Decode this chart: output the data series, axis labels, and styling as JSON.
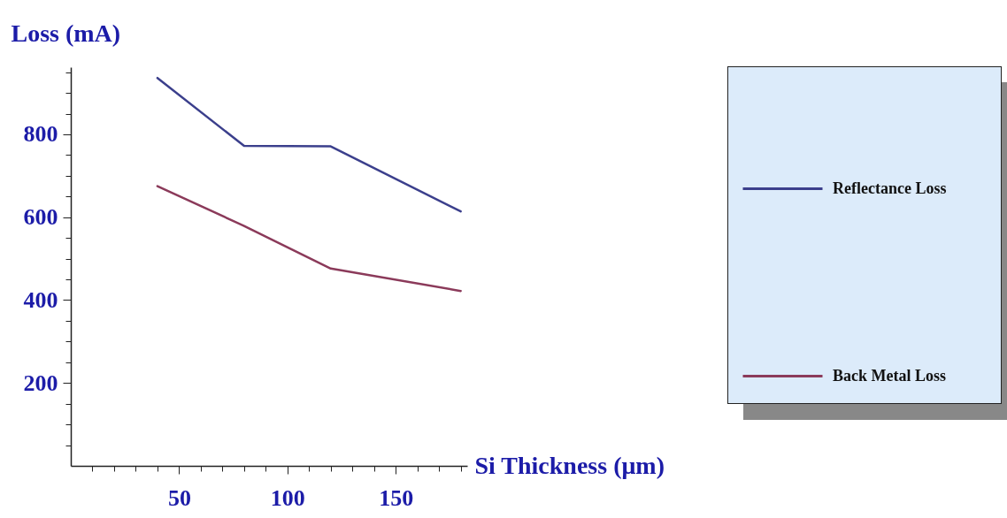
{
  "chart_data": {
    "type": "line",
    "xlabel": "Si Thickness (μm)",
    "ylabel": "Loss (mA)",
    "x": [
      40,
      80,
      120,
      180
    ],
    "series": [
      {
        "name": "Reflectance Loss",
        "color": "#3b3f8c",
        "values": [
          936,
          772,
          771,
          614
        ]
      },
      {
        "name": "Back Metal Loss",
        "color": "#8b3a5a",
        "values": [
          675,
          579,
          476,
          422
        ]
      }
    ],
    "xlim": [
      0,
      183
    ],
    "ylim": [
      0,
      962
    ],
    "xticks": [
      {
        "value": 10,
        "label": null
      },
      {
        "value": 20,
        "label": null
      },
      {
        "value": 30,
        "label": null
      },
      {
        "value": 40,
        "label": null
      },
      50,
      {
        "value": 60,
        "label": null
      },
      {
        "value": 70,
        "label": null
      },
      {
        "value": 80,
        "label": null
      },
      {
        "value": 90,
        "label": null
      },
      100,
      {
        "value": 110,
        "label": null
      },
      {
        "value": 120,
        "label": null
      },
      {
        "value": 130,
        "label": null
      },
      {
        "value": 140,
        "label": null
      },
      150,
      {
        "value": 160,
        "label": null
      },
      {
        "value": 170,
        "label": null
      },
      {
        "value": 180,
        "label": null
      }
    ],
    "yticks": [
      {
        "value": 50,
        "label": null
      },
      {
        "value": 100,
        "label": null
      },
      {
        "value": 150,
        "label": null
      },
      200,
      {
        "value": 250,
        "label": null
      },
      {
        "value": 300,
        "label": null
      },
      {
        "value": 350,
        "label": null
      },
      400,
      {
        "value": 450,
        "label": null
      },
      {
        "value": 500,
        "label": null
      },
      {
        "value": 550,
        "label": null
      },
      600,
      {
        "value": 650,
        "label": null
      },
      {
        "value": 700,
        "label": null
      },
      {
        "value": 750,
        "label": null
      },
      800,
      {
        "value": 850,
        "label": null
      },
      {
        "value": 900,
        "label": null
      },
      {
        "value": 950,
        "label": null
      }
    ],
    "legend": "right",
    "grid": false,
    "marker": "none",
    "line_style": "solid"
  }
}
